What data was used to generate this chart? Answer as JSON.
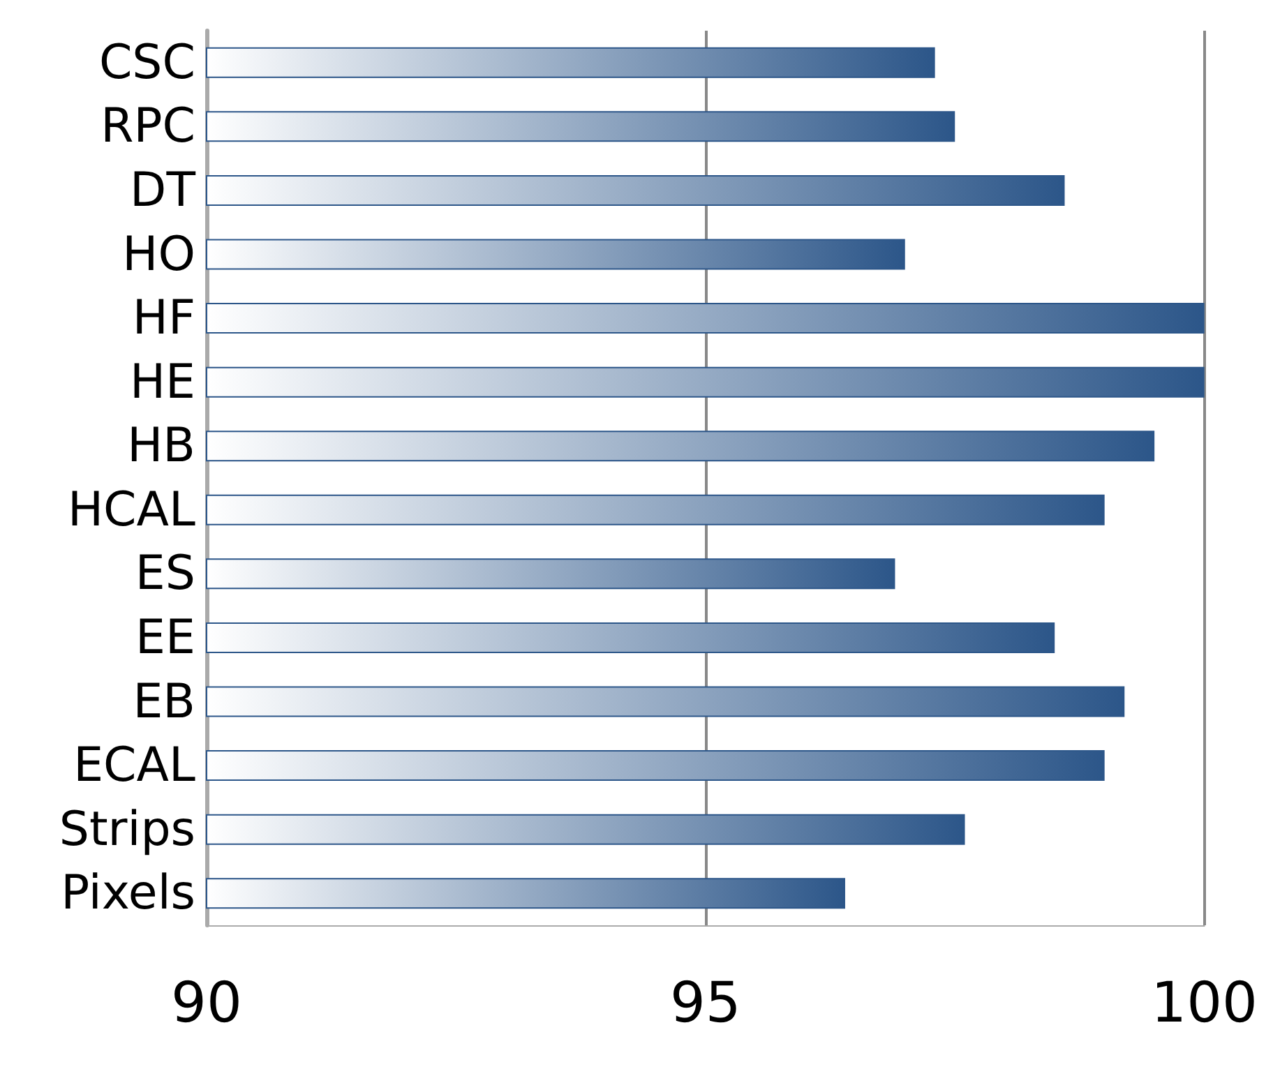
{
  "chart_data": {
    "type": "bar",
    "orientation": "horizontal",
    "categories": [
      "CSC",
      "RPC",
      "DT",
      "HO",
      "HF",
      "HE",
      "HB",
      "HCAL",
      "ES",
      "EE",
      "EB",
      "ECAL",
      "Strips",
      "Pixels"
    ],
    "values": [
      97.3,
      97.5,
      98.6,
      97.0,
      100,
      100,
      99.5,
      99.0,
      96.9,
      98.5,
      99.2,
      99.0,
      97.6,
      96.4
    ],
    "color": "#2c5689",
    "xlim": [
      90,
      100
    ],
    "xticks": [
      90,
      95,
      100
    ],
    "grid": "x"
  }
}
